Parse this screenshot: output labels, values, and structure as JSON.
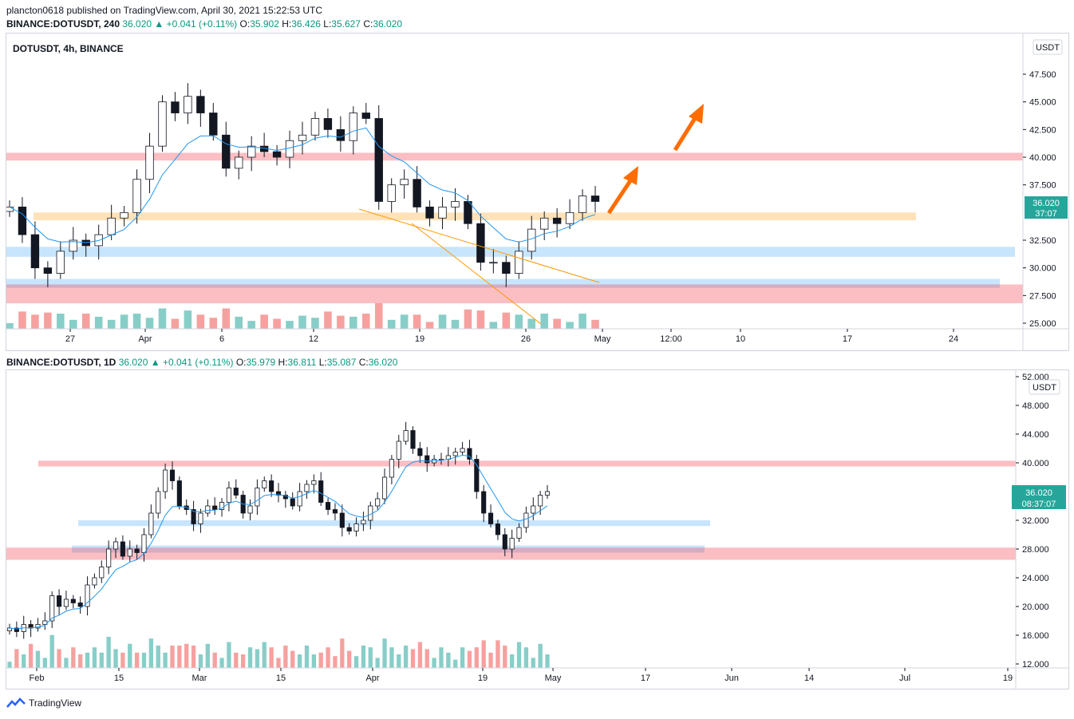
{
  "header": {
    "line1": "plancton0618 published on TradingView.com, April 30, 2021 15:22:53 UTC",
    "line2": {
      "symbol": "BINANCE:DOTUSDT, 240",
      "price": "36.020",
      "change": "+0.041 (+0.11%)",
      "o": "35.902",
      "h": "36.426",
      "l": "35.627",
      "c": "36.020"
    }
  },
  "top_panel": {
    "legend": "DOTUSDT, 4h, BINANCE",
    "currency": "USDT",
    "price_label": "36.020",
    "countdown": "37:07",
    "y_ticks": [
      "47.500",
      "45.000",
      "42.500",
      "40.000",
      "37.500",
      "32.500",
      "30.000",
      "27.500",
      "25.000"
    ],
    "x_ticks": [
      "27",
      "Apr",
      "6",
      "12",
      "19",
      "26",
      "May",
      "12:00",
      "10",
      "17",
      "24"
    ]
  },
  "bottom_header": {
    "symbol": "BINANCE:DOTUSDT, 1D",
    "price": "36.020",
    "change": "+0.041 (+0.11%)",
    "o": "35.979",
    "h": "36.811",
    "l": "35.087",
    "c": "36.020"
  },
  "bottom_panel": {
    "currency": "USDT",
    "price_label": "36.020",
    "countdown": "08:37:07",
    "y_ticks": [
      "52.000",
      "48.000",
      "44.000",
      "40.000",
      "32.000",
      "28.000",
      "24.000",
      "20.000",
      "16.000",
      "12.000"
    ],
    "x_ticks": [
      "Feb",
      "15",
      "Mar",
      "15",
      "Apr",
      "19",
      "May",
      "17",
      "Jun",
      "14",
      "Jul",
      "19"
    ]
  },
  "footer": {
    "brand": "TradingView"
  },
  "colors": {
    "up": "#26a69a",
    "down": "#ef5350",
    "ma": "#2196f3",
    "arrow": "#ff6d00"
  },
  "chart_data": [
    {
      "type": "candlestick",
      "title": "DOTUSDT, 4h, BINANCE",
      "ylim": [
        24,
        49
      ],
      "y_axis": "USDT",
      "last_price": 36.02,
      "x_range": [
        "2021-03-23",
        "2021-05-26"
      ],
      "annotations": {
        "zones": [
          {
            "low": 39.7,
            "high": 40.4,
            "color": "red"
          },
          {
            "low": 34.3,
            "high": 35.0,
            "color": "orange"
          },
          {
            "low": 31.0,
            "high": 31.9,
            "color": "blue"
          },
          {
            "low": 28.2,
            "high": 29.0,
            "color": "blue"
          },
          {
            "low": 26.8,
            "high": 28.5,
            "color": "red"
          }
        ],
        "arrows": 2,
        "trendlines": 2
      },
      "series_close_approx": [
        35.5,
        33.0,
        30.0,
        29.5,
        31.5,
        32.5,
        32.0,
        33.0,
        34.5,
        35.0,
        38.0,
        41.0,
        45.0,
        44.0,
        45.5,
        44.0,
        42.0,
        39.0,
        40.0,
        41.0,
        40.5,
        40.0,
        41.5,
        42.0,
        43.5,
        42.5,
        41.5,
        44.0,
        43.5,
        36.0,
        37.5,
        38.0,
        35.5,
        34.5,
        35.5,
        36.0,
        34.0,
        30.5,
        30.5,
        29.5,
        31.5,
        33.5,
        34.5,
        34.0,
        35.0,
        36.5,
        36.0
      ]
    },
    {
      "type": "candlestick",
      "title": "BINANCE:DOTUSDT, 1D",
      "ylim": [
        12,
        52
      ],
      "y_axis": "USDT",
      "last_price": 36.02,
      "x_range": [
        "2021-01-30",
        "2021-07-19"
      ],
      "annotations": {
        "zones": [
          {
            "low": 39.5,
            "high": 40.3,
            "color": "red"
          },
          {
            "low": 31.2,
            "high": 32.0,
            "color": "blue"
          },
          {
            "low": 27.5,
            "high": 28.5,
            "color": "blue"
          },
          {
            "low": 26.5,
            "high": 28.2,
            "color": "red"
          }
        ]
      },
      "series_close_approx": [
        17.0,
        16.5,
        17.5,
        17.0,
        17.5,
        18.0,
        21.5,
        20.0,
        21.0,
        20.5,
        20.0,
        23.0,
        24.0,
        25.5,
        28.0,
        29.0,
        27.0,
        28.0,
        27.5,
        30.0,
        33.0,
        36.0,
        39.0,
        37.5,
        34.0,
        33.5,
        31.5,
        33.0,
        34.0,
        33.5,
        34.5,
        36.5,
        35.5,
        33.0,
        34.0,
        36.5,
        37.5,
        36.0,
        35.5,
        35.0,
        34.0,
        36.0,
        37.0,
        37.5,
        34.5,
        33.5,
        33.0,
        31.0,
        30.5,
        31.5,
        32.0,
        34.0,
        35.0,
        38.0,
        40.5,
        43.0,
        44.5,
        42.0,
        41.0,
        40.0,
        40.5,
        40.5,
        41.0,
        41.5,
        42.0,
        40.5,
        36.0,
        33.0,
        31.5,
        30.0,
        28.0,
        29.5,
        31.0,
        33.0,
        34.0,
        35.5,
        36.0
      ]
    }
  ]
}
